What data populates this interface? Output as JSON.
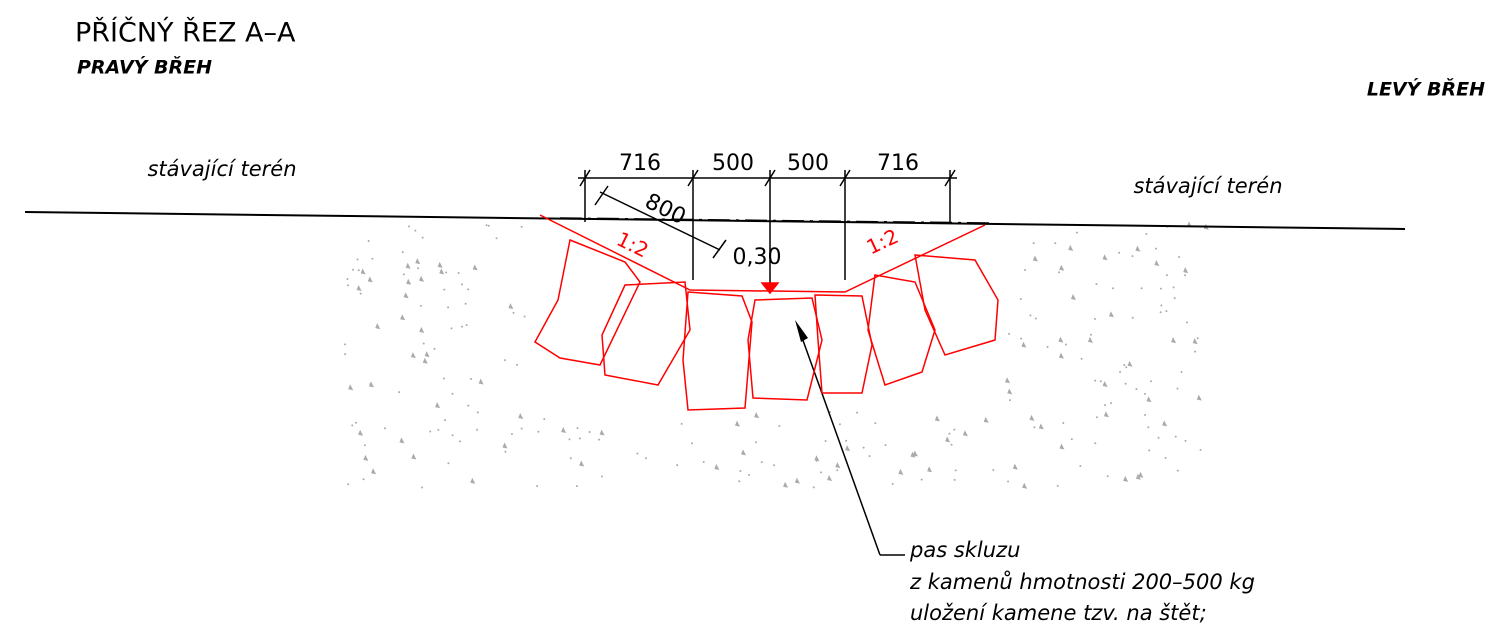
{
  "header": {
    "title": "PŘÍČNÝ ŘEZ A–A",
    "subtitle": "PRAVÝ BŘEH",
    "right_label": "LEVÝ BŘEH"
  },
  "terrain": {
    "left_label": "stávající terén",
    "right_label": "stávající terén"
  },
  "dimensions": {
    "top": [
      716,
      500,
      500,
      716
    ],
    "diagonal": 800,
    "depth": "0,30"
  },
  "slopes": {
    "left": "1:2",
    "right": "1:2"
  },
  "note": {
    "lines": [
      "pas skluzu",
      "z kamenů hmotnosti 200–500 kg",
      "uložení kamene tzv. na štět;"
    ]
  }
}
